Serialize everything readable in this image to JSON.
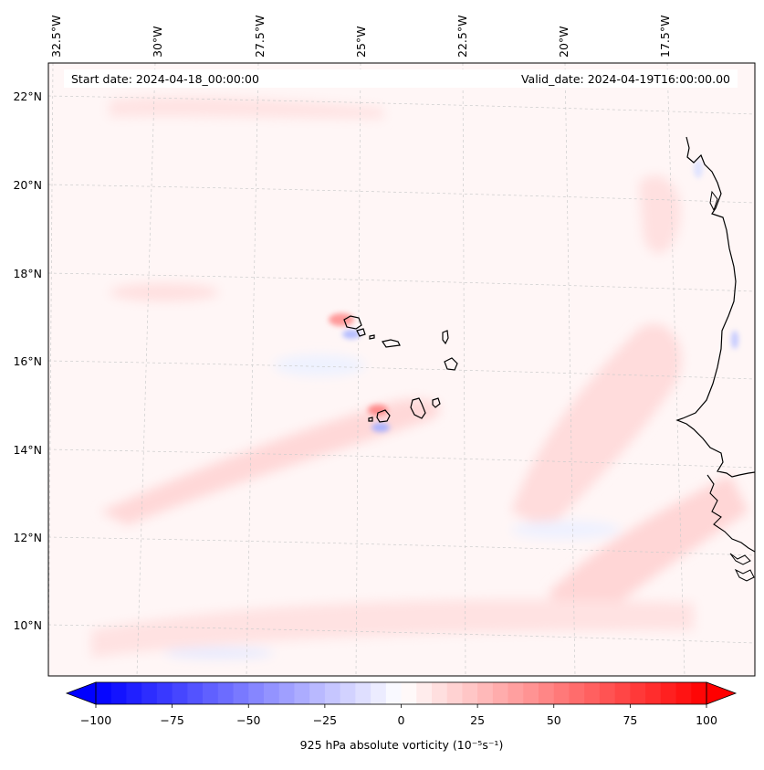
{
  "map": {
    "start_label": "Start date: 2024-04-18_00:00:00",
    "valid_label": "Valid_date: 2024-04-19T16:00:00.00",
    "lon_labels": [
      "32.5°W",
      "30°W",
      "27.5°W",
      "25°W",
      "22.5°W",
      "20°W",
      "17.5°W"
    ],
    "lat_labels": [
      "22°N",
      "20°N",
      "18°N",
      "16°N",
      "14°N",
      "12°N",
      "10°N"
    ],
    "colorbar": {
      "label": "925 hPa absolute vorticity (10⁻⁵s⁻¹)",
      "ticks": [
        "−100",
        "−75",
        "−50",
        "−25",
        "0",
        "25",
        "50",
        "75",
        "100"
      ],
      "min": -100,
      "max": 100,
      "levels": 40,
      "neg_color": "#0000ff",
      "pos_color": "#ff0000",
      "mid_color": "#ffffff"
    },
    "colors": {
      "background": "#fff6f6",
      "coast": "#000000",
      "grid": "#cccccc"
    }
  }
}
